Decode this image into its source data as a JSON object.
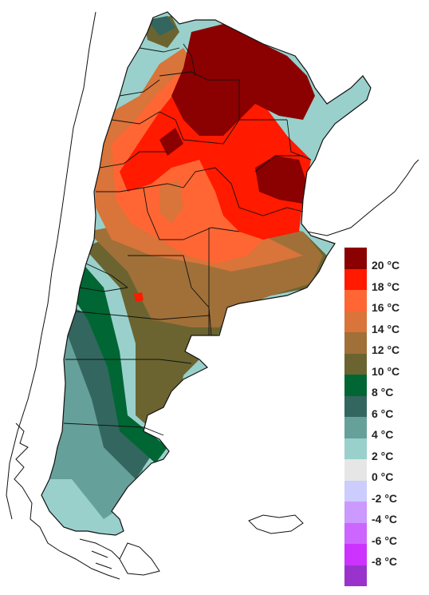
{
  "legend": {
    "items": [
      {
        "label": "20 °C",
        "color": "#8b0000"
      },
      {
        "label": "18 °C",
        "color": "#ff1a00"
      },
      {
        "label": "16 °C",
        "color": "#ff6633"
      },
      {
        "label": "14 °C",
        "color": "#d9743a"
      },
      {
        "label": "12 °C",
        "color": "#a07038"
      },
      {
        "label": "10 °C",
        "color": "#6b6430"
      },
      {
        "label": "8 °C",
        "color": "#006633"
      },
      {
        "label": "6 °C",
        "color": "#33665e"
      },
      {
        "label": "4 °C",
        "color": "#66a09a"
      },
      {
        "label": "2 °C",
        "color": "#99d0cc"
      },
      {
        "label": "0 °C",
        "color": "#e6e6e6"
      },
      {
        "label": "-2 °C",
        "color": "#ccccff"
      },
      {
        "label": "-4 °C",
        "color": "#cc99ff"
      },
      {
        "label": "-6 °C",
        "color": "#cc66ff"
      },
      {
        "label": "-8 °C",
        "color": "#cc33ff"
      },
      {
        "label": "",
        "color": "#9933cc"
      }
    ]
  }
}
